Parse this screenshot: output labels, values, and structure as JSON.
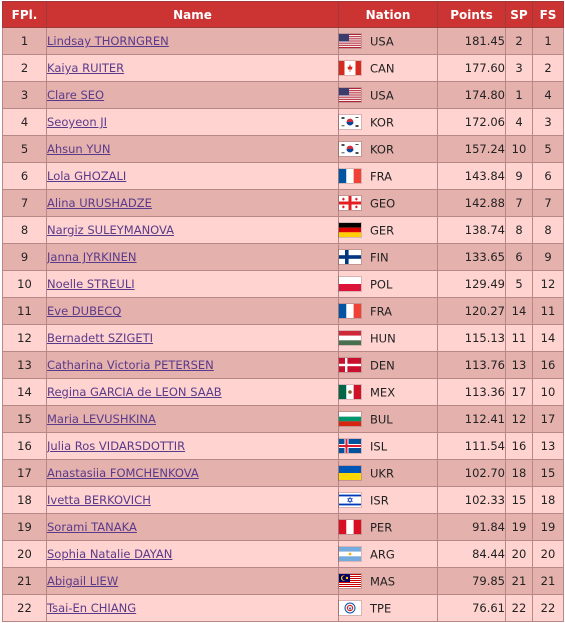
{
  "headers": {
    "fpl": "FPl.",
    "name": "Name",
    "nation": "Nation",
    "points": "Points",
    "sp": "SP",
    "fs": "FS"
  },
  "rows": [
    {
      "fpl": "1",
      "name": "Lindsay THORNGREN",
      "flag": "usa-flag-icon",
      "code": "USA",
      "points": "181.45",
      "sp": "2",
      "fs": "1"
    },
    {
      "fpl": "2",
      "name": "Kaiya RUITER",
      "flag": "canada-flag-icon",
      "code": "CAN",
      "points": "177.60",
      "sp": "3",
      "fs": "2"
    },
    {
      "fpl": "3",
      "name": "Clare SEO",
      "flag": "usa-flag-icon",
      "code": "USA",
      "points": "174.80",
      "sp": "1",
      "fs": "4"
    },
    {
      "fpl": "4",
      "name": "Seoyeon JI",
      "flag": "korea-flag-icon",
      "code": "KOR",
      "points": "172.06",
      "sp": "4",
      "fs": "3"
    },
    {
      "fpl": "5",
      "name": "Ahsun YUN",
      "flag": "korea-flag-icon",
      "code": "KOR",
      "points": "157.24",
      "sp": "10",
      "fs": "5"
    },
    {
      "fpl": "6",
      "name": "Lola GHOZALI",
      "flag": "france-flag-icon",
      "code": "FRA",
      "points": "143.84",
      "sp": "9",
      "fs": "6"
    },
    {
      "fpl": "7",
      "name": "Alina URUSHADZE",
      "flag": "georgia-flag-icon",
      "code": "GEO",
      "points": "142.88",
      "sp": "7",
      "fs": "7"
    },
    {
      "fpl": "8",
      "name": "Nargiz SULEYMANOVA",
      "flag": "germany-flag-icon",
      "code": "GER",
      "points": "138.74",
      "sp": "8",
      "fs": "8"
    },
    {
      "fpl": "9",
      "name": "Janna JYRKINEN",
      "flag": "finland-flag-icon",
      "code": "FIN",
      "points": "133.65",
      "sp": "6",
      "fs": "9"
    },
    {
      "fpl": "10",
      "name": "Noelle STREULI",
      "flag": "poland-flag-icon",
      "code": "POL",
      "points": "129.49",
      "sp": "5",
      "fs": "12"
    },
    {
      "fpl": "11",
      "name": "Eve DUBECQ",
      "flag": "france-flag-icon",
      "code": "FRA",
      "points": "120.27",
      "sp": "14",
      "fs": "11"
    },
    {
      "fpl": "12",
      "name": "Bernadett SZIGETI",
      "flag": "hungary-flag-icon",
      "code": "HUN",
      "points": "115.13",
      "sp": "11",
      "fs": "14"
    },
    {
      "fpl": "13",
      "name": "Catharina Victoria PETERSEN",
      "flag": "denmark-flag-icon",
      "code": "DEN",
      "points": "113.76",
      "sp": "13",
      "fs": "16"
    },
    {
      "fpl": "14",
      "name": "Regina GARCIA de LEON SAAB",
      "flag": "mexico-flag-icon",
      "code": "MEX",
      "points": "113.36",
      "sp": "17",
      "fs": "10"
    },
    {
      "fpl": "15",
      "name": "Maria LEVUSHKINA",
      "flag": "bulgaria-flag-icon",
      "code": "BUL",
      "points": "112.41",
      "sp": "12",
      "fs": "17"
    },
    {
      "fpl": "16",
      "name": "Julia Ros VIDARSDOTTIR",
      "flag": "iceland-flag-icon",
      "code": "ISL",
      "points": "111.54",
      "sp": "16",
      "fs": "13"
    },
    {
      "fpl": "17",
      "name": "Anastasiia FOMCHENKOVA",
      "flag": "ukraine-flag-icon",
      "code": "UKR",
      "points": "102.70",
      "sp": "18",
      "fs": "15"
    },
    {
      "fpl": "18",
      "name": "Ivetta BERKOVICH",
      "flag": "israel-flag-icon",
      "code": "ISR",
      "points": "102.33",
      "sp": "15",
      "fs": "18"
    },
    {
      "fpl": "19",
      "name": "Sorami TANAKA",
      "flag": "peru-flag-icon",
      "code": "PER",
      "points": "91.84",
      "sp": "19",
      "fs": "19"
    },
    {
      "fpl": "20",
      "name": "Sophia Natalie DAYAN",
      "flag": "argentina-flag-icon",
      "code": "ARG",
      "points": "84.44",
      "sp": "20",
      "fs": "20"
    },
    {
      "fpl": "21",
      "name": "Abigail LIEW",
      "flag": "malaysia-flag-icon",
      "code": "MAS",
      "points": "79.85",
      "sp": "21",
      "fs": "21"
    },
    {
      "fpl": "22",
      "name": "Tsai-En CHIANG",
      "flag": "chinese-taipei-flag-icon",
      "code": "TPE",
      "points": "76.61",
      "sp": "22",
      "fs": "22"
    }
  ]
}
